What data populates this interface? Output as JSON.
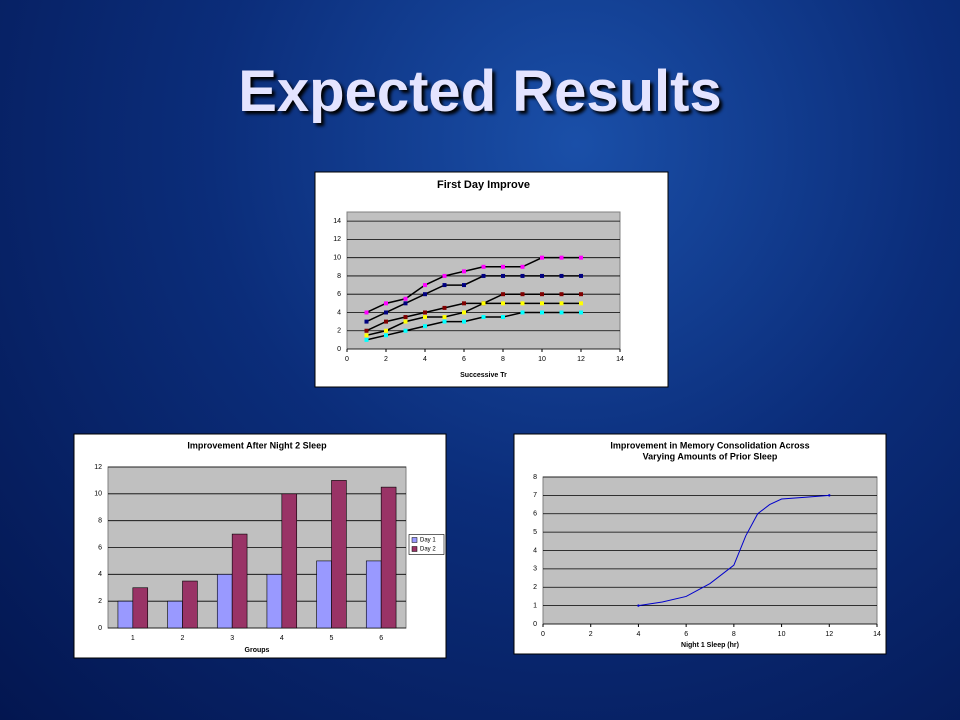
{
  "title": "Expected Results",
  "chart_data": [
    {
      "type": "scatter",
      "title": "First Day Improve",
      "x_label": "Successive Tr",
      "x": [
        1,
        2,
        3,
        4,
        5,
        6,
        7,
        8,
        9,
        10,
        11,
        12
      ],
      "series": [
        {
          "color": "#ff00ff",
          "values": [
            4,
            5,
            5.5,
            7,
            8,
            8.5,
            9,
            9,
            9,
            10,
            10,
            10
          ]
        },
        {
          "color": "#000080",
          "values": [
            3,
            4,
            5,
            6,
            7,
            7,
            8,
            8,
            8,
            8,
            8,
            8
          ]
        },
        {
          "color": "#800000",
          "values": [
            2,
            3,
            3.5,
            4,
            4.5,
            5,
            5,
            6,
            6,
            6,
            6,
            6
          ]
        },
        {
          "color": "#ffff00",
          "values": [
            1.5,
            2,
            3,
            3.5,
            3.5,
            4,
            5,
            5,
            5,
            5,
            5,
            5
          ]
        },
        {
          "color": "#00ffff",
          "values": [
            1,
            1.5,
            2,
            2.5,
            3,
            3,
            3.5,
            3.5,
            4,
            4,
            4,
            4
          ]
        }
      ],
      "xlim": [
        0,
        14
      ],
      "xticks": [
        0,
        2,
        4,
        6,
        8,
        10,
        12,
        14
      ],
      "ylim": [
        0,
        15
      ],
      "yticks": [
        0,
        2,
        4,
        6,
        8,
        10,
        12,
        14
      ],
      "grid": true
    },
    {
      "type": "bar",
      "title": "Improvement After Night 2 Sleep",
      "x_label": "Groups",
      "categories": [
        "1",
        "2",
        "3",
        "4",
        "5",
        "6"
      ],
      "series": [
        {
          "name": "Day 1",
          "color": "#9999ff",
          "values": [
            2,
            2,
            4,
            4,
            5,
            5
          ]
        },
        {
          "name": "Day 2",
          "color": "#993366",
          "values": [
            3,
            3.5,
            7,
            10,
            11,
            10.5
          ]
        }
      ],
      "ylim": [
        0,
        12
      ],
      "yticks": [
        0,
        2,
        4,
        6,
        8,
        10,
        12
      ],
      "grid": true,
      "legend": "right"
    },
    {
      "type": "line",
      "title": [
        "Improvement in Memory Consolidation Across",
        "Varying Amounts of Prior Sleep"
      ],
      "x_label": "Night 1 Sleep (hr)",
      "x": [
        4,
        5,
        6,
        7,
        8,
        8.5,
        9,
        9.5,
        10,
        11,
        12
      ],
      "values": [
        1,
        1.2,
        1.5,
        2.2,
        3.2,
        4.8,
        6,
        6.5,
        6.8,
        6.9,
        7
      ],
      "color": "#0000cc",
      "xlim": [
        0,
        14
      ],
      "xticks": [
        0,
        2,
        4,
        6,
        8,
        10,
        12,
        14
      ],
      "ylim": [
        0,
        8
      ],
      "yticks": [
        0,
        1,
        2,
        3,
        4,
        5,
        6,
        7,
        8
      ],
      "grid": true
    }
  ]
}
